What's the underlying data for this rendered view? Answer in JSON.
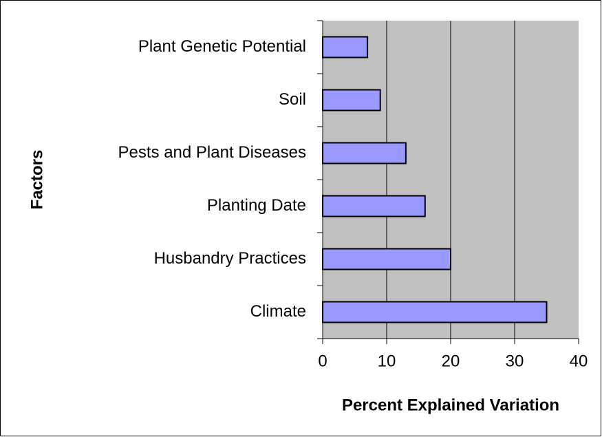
{
  "chart_data": {
    "type": "bar",
    "orientation": "horizontal",
    "categories": [
      "Climate",
      "Husbandry Practices",
      "Planting Date",
      "Pests and Plant Diseases",
      "Soil",
      "Plant Genetic Potential"
    ],
    "values": [
      35,
      20,
      16,
      13,
      9,
      7
    ],
    "color": "#9999ff",
    "x_label": "Percent Explained Variation",
    "y_label": "Factors",
    "xlim": [
      0,
      40
    ],
    "xticks": [
      0,
      10,
      20,
      30,
      40
    ],
    "grid": true
  }
}
